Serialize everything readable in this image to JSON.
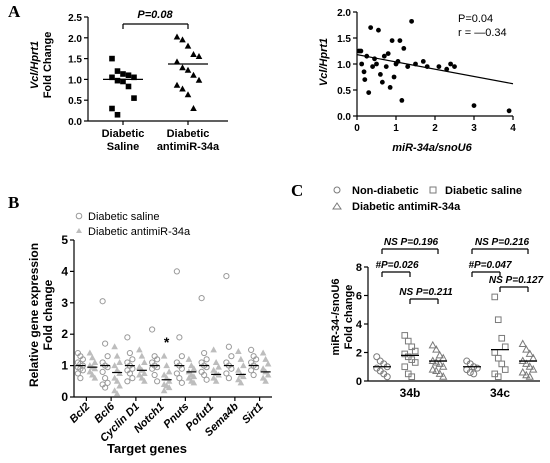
{
  "panels": {
    "A": "A",
    "B": "B",
    "C": "C"
  },
  "chart_data": [
    {
      "id": "A-left",
      "type": "scatter",
      "ylabel_top": "Vcl/Hprt1",
      "ylabel_bottom": "Fold Change",
      "ylim": [
        0,
        2.5
      ],
      "yticks": [
        "0.0",
        "0.5",
        "1.0",
        "1.5",
        "2.0",
        "2.5"
      ],
      "categories": [
        {
          "line1": "Diabetic",
          "line2": "Saline"
        },
        {
          "line1": "Diabetic",
          "line2": "antimiR-34a"
        }
      ],
      "series": [
        {
          "marker": "square",
          "mean": 1.0,
          "values": [
            1.5,
            1.2,
            1.13,
            1.1,
            1.05,
            1.05,
            0.97,
            0.95,
            0.83,
            0.55,
            0.3,
            0.15
          ]
        },
        {
          "marker": "triangle",
          "mean": 1.37,
          "values": [
            2.02,
            1.95,
            1.8,
            1.6,
            1.55,
            1.42,
            1.28,
            1.22,
            1.1,
            0.98,
            0.86,
            0.77,
            0.63,
            0.3
          ]
        }
      ],
      "annotation": "P=0.08"
    },
    {
      "id": "A-right",
      "type": "scatter",
      "ylabel": "Vcl/Hprt1",
      "xlabel": "miR-34a/snoU6",
      "xlim": [
        0,
        4
      ],
      "ylim": [
        0,
        2
      ],
      "xticks": [
        "0",
        "1",
        "2",
        "3",
        "4"
      ],
      "yticks": [
        "0.0",
        "0.5",
        "1.0",
        "1.5",
        "2.0"
      ],
      "points": [
        [
          0.05,
          1.25
        ],
        [
          0.1,
          1.25
        ],
        [
          0.12,
          1.0
        ],
        [
          0.18,
          0.85
        ],
        [
          0.2,
          0.7
        ],
        [
          0.25,
          1.15
        ],
        [
          0.3,
          0.45
        ],
        [
          0.35,
          1.7
        ],
        [
          0.4,
          0.95
        ],
        [
          0.45,
          1.1
        ],
        [
          0.5,
          1.0
        ],
        [
          0.55,
          1.65
        ],
        [
          0.6,
          0.8
        ],
        [
          0.65,
          0.65
        ],
        [
          0.7,
          1.15
        ],
        [
          0.75,
          0.95
        ],
        [
          0.8,
          1.2
        ],
        [
          0.85,
          0.55
        ],
        [
          0.9,
          1.45
        ],
        [
          0.95,
          0.75
        ],
        [
          1.0,
          1.0
        ],
        [
          1.05,
          1.05
        ],
        [
          1.1,
          1.45
        ],
        [
          1.15,
          0.3
        ],
        [
          1.2,
          1.3
        ],
        [
          1.3,
          0.95
        ],
        [
          1.4,
          1.82
        ],
        [
          1.5,
          1.0
        ],
        [
          1.7,
          1.05
        ],
        [
          1.8,
          0.95
        ],
        [
          2.1,
          0.95
        ],
        [
          2.3,
          0.9
        ],
        [
          2.4,
          1.0
        ],
        [
          2.5,
          0.95
        ],
        [
          3.0,
          0.2
        ],
        [
          3.9,
          0.1
        ]
      ],
      "regression": {
        "x0": 0,
        "y0": 1.18,
        "x1": 4,
        "y1": 0.62
      },
      "stats": {
        "p": "P=0.04",
        "r": "r = —0.34"
      }
    },
    {
      "id": "B",
      "type": "scatter",
      "ylabel_top": "Relative gene expression",
      "ylabel_bottom": "Fold change",
      "xlabel": "Target genes",
      "ylim": [
        0,
        5
      ],
      "yticks": [
        "0",
        "1",
        "2",
        "3",
        "4",
        "5"
      ],
      "legend": [
        "Diabetic saline",
        "Diabetic antimiR-34a"
      ],
      "categories": [
        "Bcl2",
        "Bcl6",
        "Cyclin D1",
        "Notch1",
        "Pnuts",
        "Pofut1",
        "Sema4b",
        "Sirt1"
      ],
      "significance": [
        "",
        "",
        "",
        "*",
        "",
        "",
        "",
        ""
      ],
      "saline_mean": [
        1.0,
        1.0,
        1.0,
        1.0,
        1.0,
        1.0,
        1.0,
        1.0
      ],
      "antimir_mean": [
        0.95,
        0.78,
        0.85,
        0.55,
        0.8,
        0.72,
        0.72,
        0.8
      ],
      "saline": [
        [
          1.4,
          1.3,
          1.2,
          1.1,
          1.05,
          1.0,
          0.95,
          0.9,
          0.85,
          0.75,
          0.6
        ],
        [
          3.05,
          1.7,
          1.3,
          1.1,
          1.0,
          0.95,
          0.8,
          0.6,
          0.45,
          0.4,
          0.3
        ],
        [
          1.9,
          1.4,
          1.2,
          1.1,
          1.0,
          0.9,
          0.85,
          0.75,
          0.6,
          0.5
        ],
        [
          2.15,
          1.3,
          1.2,
          1.1,
          1.0,
          0.95,
          0.9,
          0.7,
          0.5
        ],
        [
          4.0,
          1.9,
          1.3,
          1.1,
          1.0,
          0.9,
          0.75,
          0.6,
          0.45
        ],
        [
          3.15,
          1.4,
          1.2,
          1.1,
          1.0,
          0.95,
          0.8,
          0.7,
          0.55
        ],
        [
          3.85,
          1.6,
          1.3,
          1.1,
          1.0,
          0.9,
          0.75,
          0.6
        ],
        [
          1.5,
          1.3,
          1.2,
          1.1,
          1.0,
          0.95,
          0.85,
          0.7
        ]
      ],
      "antimir": [
        [
          1.4,
          1.25,
          1.1,
          1.0,
          0.95,
          0.9,
          0.8,
          0.7,
          0.6
        ],
        [
          1.6,
          1.3,
          1.1,
          1.0,
          0.85,
          0.75,
          0.6,
          0.5,
          0.35,
          0.2,
          0.1
        ],
        [
          1.5,
          1.3,
          1.1,
          0.95,
          0.85,
          0.75,
          0.7,
          0.6,
          0.5
        ],
        [
          1.3,
          1.0,
          0.8,
          0.7,
          0.6,
          0.5,
          0.4,
          0.35,
          0.3,
          0.2
        ],
        [
          1.2,
          1.0,
          0.9,
          0.8,
          0.7,
          0.65,
          0.6,
          0.5,
          0.45
        ],
        [
          1.5,
          1.1,
          0.95,
          0.85,
          0.75,
          0.7,
          0.6,
          0.5
        ],
        [
          1.45,
          1.2,
          1.0,
          0.85,
          0.7,
          0.65,
          0.55,
          0.45
        ],
        [
          1.4,
          1.2,
          1.05,
          0.9,
          0.8,
          0.7,
          0.6,
          0.5
        ]
      ]
    },
    {
      "id": "C",
      "type": "scatter",
      "ylabel_top": "miR-34-/snoU6",
      "ylabel_bottom": "Fold change",
      "ylim": [
        0,
        8
      ],
      "yticks": [
        "0",
        "2",
        "4",
        "6",
        "8"
      ],
      "legend": [
        "Non-diabetic",
        "Diabetic saline",
        "Diabetic antimiR-34a"
      ],
      "categories": [
        "34b",
        "34c"
      ],
      "groups": [
        {
          "nondiabetic": [
            1.7,
            1.4,
            1.2,
            1.0,
            0.9,
            0.7,
            0.5,
            0.3
          ],
          "saline": [
            3.2,
            2.8,
            2.4,
            2.1,
            1.9,
            1.7,
            1.5,
            1.3,
            1.0,
            0.5,
            0.3
          ],
          "antimir": [
            2.5,
            2.2,
            1.8,
            1.6,
            1.4,
            1.3,
            1.2,
            1.0,
            0.8,
            0.7,
            0.5,
            0.3
          ],
          "means": [
            1.0,
            1.8,
            1.4
          ]
        },
        {
          "nondiabetic": [
            1.4,
            1.2,
            1.0,
            0.9,
            0.8,
            0.6,
            0.5
          ],
          "saline": [
            5.9,
            4.3,
            3.0,
            2.4,
            2.0,
            1.6,
            1.2,
            0.8,
            0.5,
            0.3
          ],
          "antimir": [
            2.6,
            2.2,
            1.9,
            1.6,
            1.4,
            1.2,
            1.0,
            0.8,
            0.6,
            0.4,
            0.3
          ],
          "means": [
            1.0,
            2.2,
            1.4
          ]
        }
      ],
      "annotations": {
        "b_ns": "NS P=0.196",
        "b_sig": "#P=0.026",
        "b_ns2": "NS P=0.211",
        "c_ns": "NS P=0.216",
        "c_sig": "#P=0.047",
        "c_ns2": "NS P=0.127"
      }
    }
  ]
}
